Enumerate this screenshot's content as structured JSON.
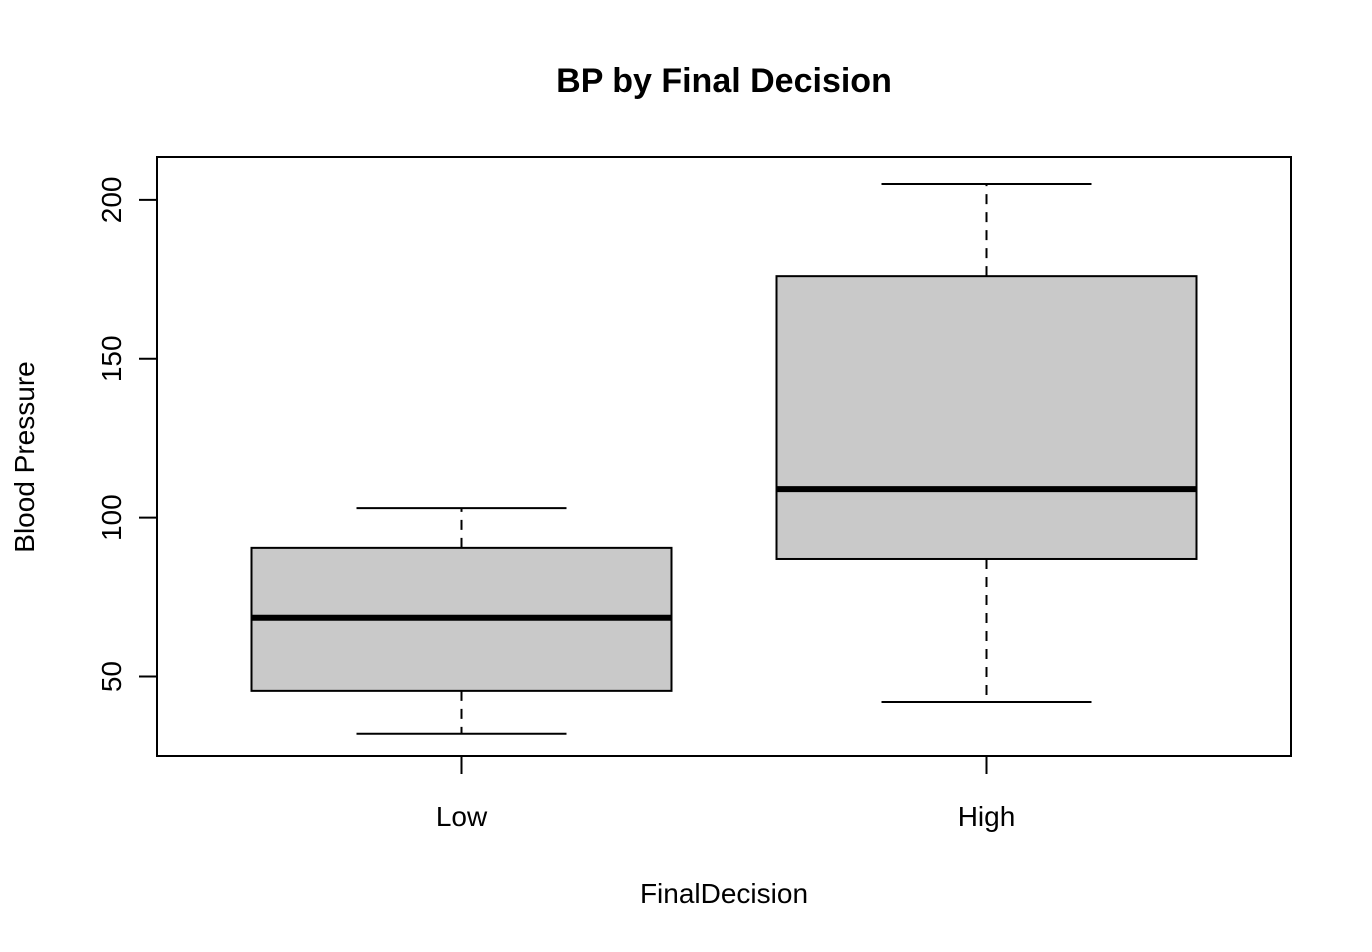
{
  "chart_data": {
    "type": "boxplot",
    "title": "BP by Final Decision",
    "xlabel": "FinalDecision",
    "ylabel": "Blood Pressure",
    "categories": [
      "Low",
      "High"
    ],
    "boxes": [
      {
        "category": "Low",
        "whisker_low": 32,
        "q1": 45.5,
        "median": 68.5,
        "q3": 90.5,
        "whisker_high": 103
      },
      {
        "category": "High",
        "whisker_low": 42,
        "q1": 87,
        "median": 109,
        "q3": 176,
        "whisker_high": 205
      }
    ],
    "yticks": [
      50,
      100,
      150,
      200
    ],
    "ylim": [
      25,
      213.5
    ],
    "box_fill": "#c9c9c9",
    "grid": false
  }
}
